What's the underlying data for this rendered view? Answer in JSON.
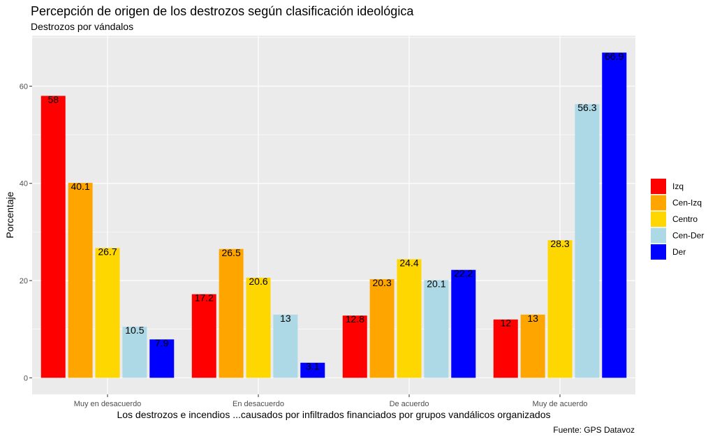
{
  "chart_data": {
    "type": "bar",
    "title": "Percepción de origen de los destrozos según clasificación ideológica",
    "subtitle": "Destrozos por vándalos",
    "xlabel": "Los destrozos e incendios ...causados por infiltrados financiados por grupos vandálicos organizados",
    "ylabel": "Porcentaje",
    "caption": "Fuente: GPS Datavoz",
    "categories": [
      "Muy en desacuerdo",
      "En desacuerdo",
      "De acuerdo",
      "Muy de acuerdo"
    ],
    "ylim": [
      -3.4,
      70.4
    ],
    "yticks": [
      0,
      20,
      40,
      60
    ],
    "grid": true,
    "legend_position": "right",
    "series": [
      {
        "name": "Izq",
        "color": "#ff0000",
        "values": [
          58,
          17.2,
          12.8,
          12
        ],
        "labels": [
          "58",
          "17.2",
          "12.8",
          "12"
        ]
      },
      {
        "name": "Cen-Izq",
        "color": "#ffa500",
        "values": [
          40.1,
          26.5,
          20.3,
          13
        ],
        "labels": [
          "40.1",
          "26.5",
          "20.3",
          "13"
        ]
      },
      {
        "name": "Centro",
        "color": "#ffd700",
        "values": [
          26.7,
          20.6,
          24.4,
          28.3
        ],
        "labels": [
          "26.7",
          "20.6",
          "24.4",
          "28.3"
        ]
      },
      {
        "name": "Cen-Der",
        "color": "#add8e6",
        "values": [
          10.5,
          13,
          20.1,
          56.3
        ],
        "labels": [
          "10.5",
          "13",
          "20.1",
          "56.3"
        ]
      },
      {
        "name": "Der",
        "color": "#0000ff",
        "values": [
          7.9,
          3.1,
          22.2,
          66.9
        ],
        "labels": [
          "7.9",
          "3.1",
          "22.2",
          "66.9"
        ]
      }
    ]
  }
}
